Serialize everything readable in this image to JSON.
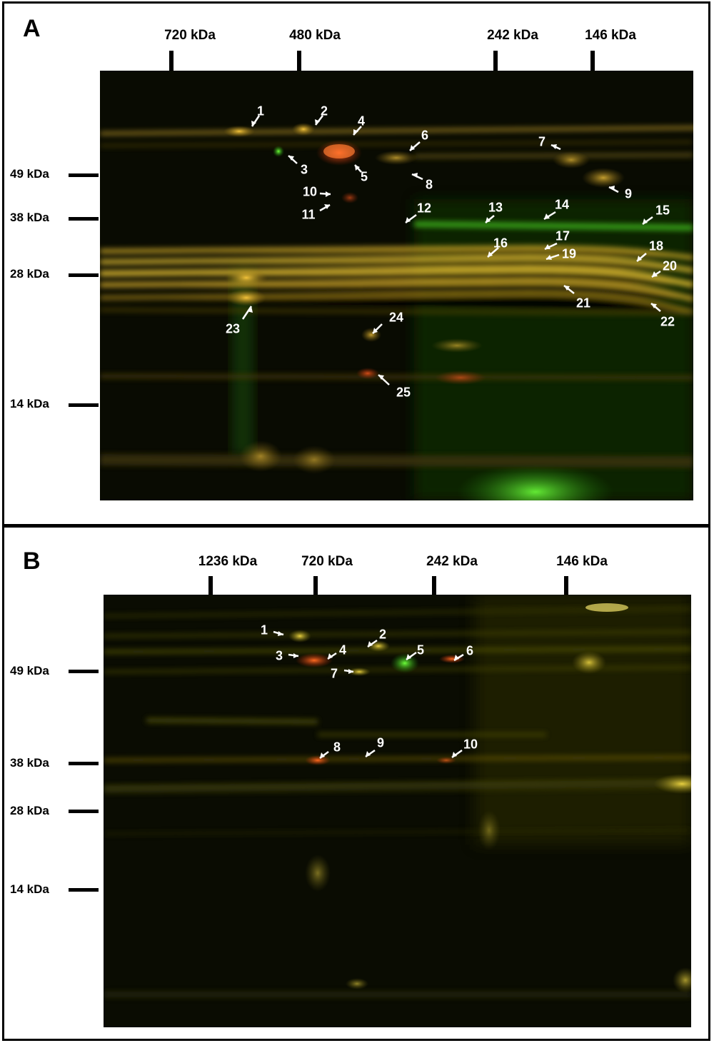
{
  "panel_a": {
    "letter": "A",
    "top_markers": [
      "720 kDa",
      "480 kDa",
      "242 kDa",
      "146 kDa"
    ],
    "side_markers": [
      "49 kDa",
      "38 kDa",
      "28 kDa",
      "14 kDa"
    ],
    "spot_labels": [
      "1",
      "2",
      "3",
      "4",
      "5",
      "6",
      "7",
      "8",
      "9",
      "10",
      "11",
      "12",
      "13",
      "14",
      "15",
      "16",
      "17",
      "18",
      "19",
      "20",
      "21",
      "22",
      "23",
      "24",
      "25"
    ]
  },
  "panel_b": {
    "letter": "B",
    "top_markers": [
      "1236 kDa",
      "720 kDa",
      "242 kDa",
      "146 kDa"
    ],
    "side_markers": [
      "49 kDa",
      "38 kDa",
      "28 kDa",
      "14 kDa"
    ],
    "spot_labels": [
      "1",
      "2",
      "3",
      "4",
      "5",
      "6",
      "7",
      "8",
      "9",
      "10"
    ]
  },
  "colors": {
    "gel_background": "#0a0c02",
    "green_channel": "#3fd81a",
    "red_channel": "#e0521a",
    "overlap_yellow": "#d8b52a"
  }
}
